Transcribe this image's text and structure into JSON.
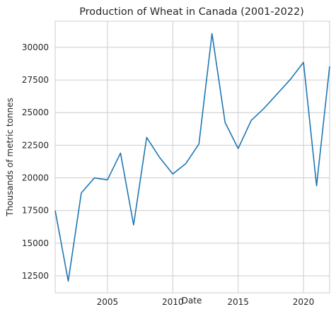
{
  "chart_data": {
    "type": "line",
    "title": "Production of Wheat in Canada (2001-2022)",
    "xlabel": "Date",
    "ylabel": "Thousands of metric tonnes",
    "xlim": [
      2001,
      2022
    ],
    "ylim": [
      11200,
      32000
    ],
    "xticks": [
      2005,
      2010,
      2015,
      2020
    ],
    "yticks": [
      12500,
      15000,
      17500,
      20000,
      22500,
      25000,
      27500,
      30000
    ],
    "grid": true,
    "series": [
      {
        "color": "#1f77b4",
        "x": [
          2001,
          2002,
          2003,
          2004,
          2005,
          2006,
          2007,
          2008,
          2009,
          2010,
          2011,
          2012,
          2013,
          2014,
          2015,
          2016,
          2017,
          2018,
          2019,
          2020,
          2021,
          2022
        ],
        "y": [
          17500,
          12100,
          18850,
          20000,
          19850,
          21900,
          16400,
          23100,
          21550,
          20300,
          21100,
          22600,
          31050,
          24250,
          22250,
          24400,
          25350,
          26450,
          27550,
          28850,
          19400,
          28550
        ]
      }
    ]
  }
}
